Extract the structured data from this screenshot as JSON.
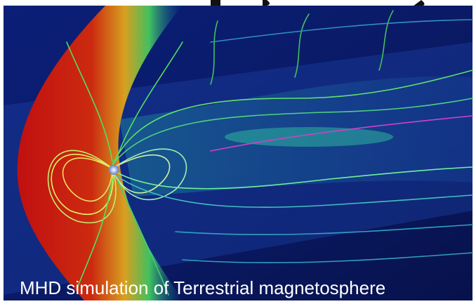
{
  "caption": "MHD simulation of Terrestrial magnetosphere"
}
